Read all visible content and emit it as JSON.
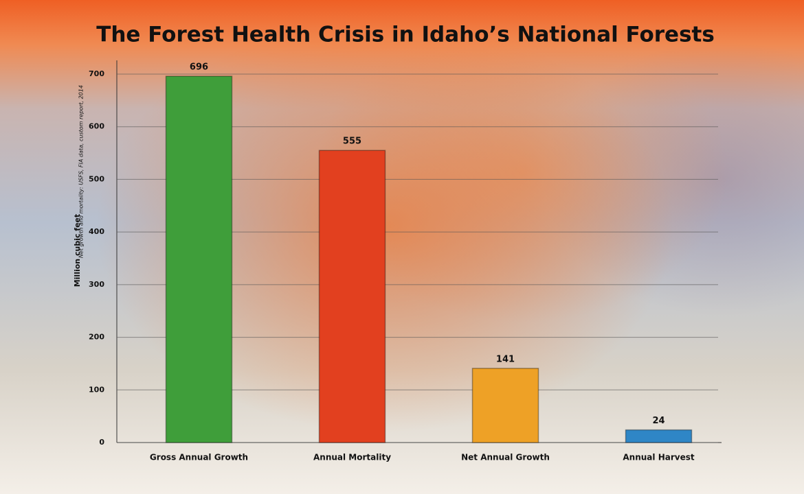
{
  "chart_data": {
    "type": "bar",
    "title": "The Forest Health Crisis in Idaho’s National Forests",
    "y_label": "Million cubic feet",
    "source_note": "Net growth and mortality: USFS, FIA data, custom report, 2014",
    "categories": [
      "Gross Annual Growth",
      "Annual Mortality",
      "Net Annual Growth",
      "Annual Harvest"
    ],
    "values": [
      696,
      555,
      141,
      24
    ],
    "colors": [
      "#3f9e3a",
      "#e2401f",
      "#eea126",
      "#2f86c6"
    ],
    "ylim": [
      0,
      700
    ],
    "yticks": [
      0,
      100,
      200,
      300,
      400,
      500,
      600,
      700
    ],
    "grid": true
  }
}
